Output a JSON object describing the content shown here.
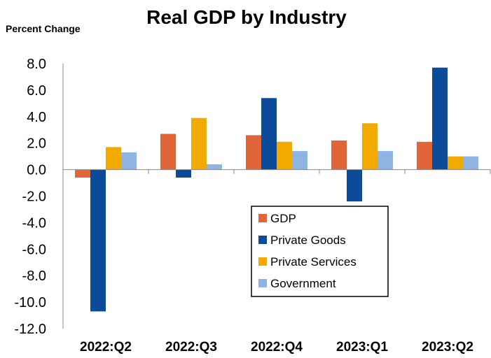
{
  "chart_data": {
    "type": "bar",
    "title": "Real GDP by Industry",
    "ylabel": "Percent Change",
    "xlabel": "",
    "categories": [
      "2022:Q2",
      "2022:Q3",
      "2022:Q4",
      "2023:Q1",
      "2023:Q2"
    ],
    "ylim": [
      -12,
      8
    ],
    "yticks": [
      "8.0",
      "6.0",
      "4.0",
      "2.0",
      "0.0",
      "-2.0",
      "-4.0",
      "-6.0",
      "-8.0",
      "-10.0",
      "-12.0"
    ],
    "grid": false,
    "legend_position": "center-right",
    "series": [
      {
        "name": "GDP",
        "color": "#E0663A",
        "values": [
          -0.6,
          2.7,
          2.6,
          2.2,
          2.1
        ]
      },
      {
        "name": "Private Goods",
        "color": "#0B4B9A",
        "values": [
          -10.7,
          -0.6,
          5.4,
          -2.4,
          7.7
        ]
      },
      {
        "name": "Private Services",
        "color": "#F2AA00",
        "values": [
          1.7,
          3.9,
          2.1,
          3.5,
          1.0
        ]
      },
      {
        "name": "Government",
        "color": "#8EB4E3",
        "values": [
          1.3,
          0.4,
          1.4,
          1.4,
          1.0
        ]
      }
    ]
  }
}
